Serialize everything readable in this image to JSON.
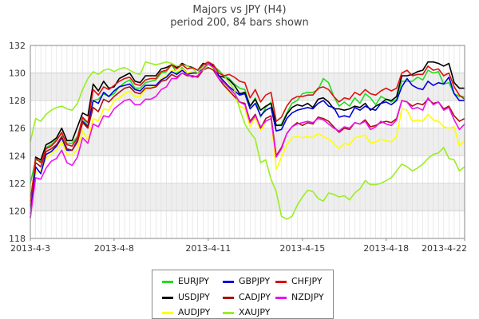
{
  "chart_data": {
    "type": "line",
    "title": "Majors vs JPY (H4)",
    "subtitle": "period 200, 84 bars shown",
    "ylim": [
      118,
      132
    ],
    "yticks": [
      118,
      120,
      122,
      124,
      126,
      128,
      130,
      132
    ],
    "xlim": [
      0,
      83
    ],
    "xticks": [
      {
        "label": "2013-4-3",
        "index": 0
      },
      {
        "label": "2013-4-8",
        "index": 16
      },
      {
        "label": "2013-4-11",
        "index": 34
      },
      {
        "label": "2013-4-15",
        "index": 52
      },
      {
        "label": "2013-4-18",
        "index": 68
      },
      {
        "label": "2013-4-22",
        "index": 83
      }
    ],
    "grid": true,
    "legend_position": "bottom",
    "series": [
      {
        "name": "EURJPY",
        "color": "#22dd22",
        "values": [
          122.0,
          123.7,
          123.6,
          124.6,
          124.8,
          125.2,
          125.6,
          124.9,
          124.9,
          125.4,
          126.7,
          126.2,
          128.0,
          128.1,
          128.5,
          128.3,
          128.5,
          129.0,
          129.3,
          129.5,
          128.9,
          128.9,
          129.3,
          129.4,
          129.5,
          130.0,
          130.1,
          130.6,
          130.0,
          130.4,
          130.0,
          130.1,
          130.0,
          130.5,
          130.7,
          130.5,
          130.2,
          129.8,
          129.6,
          129.2,
          128.9,
          128.8,
          127.6,
          128.2,
          126.8,
          127.5,
          127.9,
          126.2,
          126.3,
          127.1,
          127.8,
          128.0,
          128.5,
          128.6,
          128.6,
          128.8,
          129.6,
          129.3,
          128.3,
          127.6,
          127.9,
          127.6,
          128.2,
          127.8,
          128.5,
          128.2,
          127.7,
          128.3,
          128.1,
          127.9,
          128.1,
          129.4,
          129.4,
          129.4,
          129.7,
          129.5,
          130.2,
          130.0,
          130.1,
          129.2,
          129.3,
          128.5,
          128.3,
          128.3
        ]
      },
      {
        "name": "USDJPY",
        "color": "#000000",
        "values": [
          119.5,
          123.9,
          123.7,
          124.8,
          125.0,
          125.3,
          126.0,
          125.1,
          125.1,
          126.1,
          127.1,
          126.9,
          129.2,
          128.7,
          129.4,
          128.9,
          129.0,
          129.6,
          129.8,
          130.0,
          129.4,
          129.3,
          129.8,
          129.8,
          129.8,
          130.3,
          130.4,
          130.6,
          130.4,
          130.7,
          130.5,
          130.4,
          130.2,
          130.7,
          130.6,
          130.5,
          129.8,
          129.7,
          129.5,
          129.1,
          128.5,
          128.6,
          127.6,
          128.1,
          127.3,
          127.6,
          127.8,
          126.2,
          126.2,
          127.0,
          127.5,
          127.7,
          127.6,
          127.8,
          127.5,
          128.1,
          128.2,
          127.9,
          127.4,
          127.4,
          127.3,
          127.4,
          127.6,
          127.5,
          127.8,
          127.3,
          127.6,
          127.8,
          128.1,
          128.0,
          128.3,
          129.8,
          129.8,
          129.9,
          130.1,
          130.2,
          130.8,
          130.8,
          130.7,
          130.5,
          130.7,
          129.3,
          128.9,
          128.9
        ]
      },
      {
        "name": "AUDJPY",
        "color": "#ffff00",
        "values": [
          121.5,
          122.8,
          122.9,
          123.8,
          124.2,
          124.4,
          125.0,
          124.1,
          124.0,
          124.5,
          125.8,
          125.1,
          126.7,
          126.5,
          127.4,
          127.3,
          128.0,
          128.2,
          128.5,
          128.7,
          128.3,
          128.3,
          128.8,
          128.9,
          129.1,
          129.6,
          129.8,
          130.2,
          130.1,
          130.3,
          130.0,
          130.1,
          130.0,
          130.4,
          130.7,
          130.3,
          129.7,
          129.3,
          128.6,
          128.3,
          127.6,
          127.4,
          126.1,
          126.8,
          125.8,
          126.5,
          126.7,
          123.0,
          123.9,
          124.8,
          125.3,
          125.4,
          125.3,
          125.4,
          125.3,
          125.6,
          125.4,
          125.2,
          124.9,
          124.5,
          124.9,
          124.8,
          125.3,
          125.4,
          125.5,
          124.9,
          125.0,
          125.2,
          125.1,
          125.0,
          125.4,
          127.4,
          127.3,
          126.5,
          126.6,
          126.5,
          127.0,
          126.6,
          126.5,
          126.1,
          126.0,
          126.1,
          124.7,
          125.1
        ]
      },
      {
        "name": "GBPJPY",
        "color": "#0000dd",
        "values": [
          119.8,
          123.2,
          122.7,
          124.1,
          124.3,
          124.7,
          125.3,
          124.4,
          124.4,
          125.1,
          126.5,
          126.1,
          128.0,
          127.8,
          128.6,
          128.3,
          128.7,
          129.0,
          129.1,
          129.2,
          128.8,
          128.7,
          129.1,
          129.1,
          129.1,
          129.5,
          129.7,
          130.1,
          129.9,
          130.2,
          129.9,
          130.0,
          130.0,
          130.3,
          130.7,
          130.6,
          129.8,
          129.4,
          129.0,
          128.7,
          128.4,
          128.5,
          127.4,
          127.8,
          126.9,
          127.3,
          127.5,
          125.8,
          125.9,
          126.7,
          127.1,
          127.3,
          127.4,
          127.5,
          127.4,
          127.8,
          128.0,
          127.6,
          127.5,
          126.8,
          126.9,
          126.8,
          127.5,
          127.3,
          127.6,
          127.4,
          127.3,
          127.8,
          127.9,
          127.7,
          128.0,
          129.0,
          129.6,
          129.1,
          128.9,
          128.8,
          129.4,
          129.1,
          129.3,
          129.2,
          129.7,
          128.5,
          128.0,
          128.0
        ]
      },
      {
        "name": "CADJPY",
        "color": "#aa1111",
        "values": [
          120.7,
          123.5,
          123.2,
          124.3,
          124.5,
          124.8,
          125.4,
          124.5,
          124.4,
          125.0,
          126.4,
          126.0,
          127.5,
          127.2,
          128.1,
          127.9,
          128.3,
          128.6,
          128.9,
          129.0,
          128.6,
          128.5,
          128.9,
          128.9,
          129.0,
          129.4,
          129.5,
          129.9,
          129.7,
          130.0,
          129.8,
          129.8,
          129.7,
          130.2,
          130.4,
          130.2,
          129.6,
          129.1,
          128.7,
          128.3,
          127.9,
          127.8,
          126.5,
          127.0,
          126.0,
          126.7,
          126.9,
          124.0,
          124.6,
          125.6,
          126.1,
          126.4,
          126.2,
          126.4,
          126.3,
          126.8,
          126.7,
          126.5,
          126.1,
          125.7,
          126.0,
          125.9,
          126.4,
          126.3,
          126.6,
          126.1,
          126.2,
          126.4,
          126.5,
          126.4,
          126.7,
          128.0,
          127.9,
          127.6,
          127.8,
          127.7,
          128.1,
          127.8,
          127.9,
          127.4,
          127.6,
          126.9,
          126.5,
          126.7
        ]
      },
      {
        "name": "XAUJPY",
        "color": "#99ee22",
        "values": [
          125.0,
          126.7,
          126.5,
          127.0,
          127.3,
          127.5,
          127.6,
          127.4,
          127.3,
          127.8,
          128.8,
          129.6,
          130.1,
          129.9,
          130.2,
          130.3,
          130.1,
          130.3,
          130.4,
          130.2,
          130.0,
          129.9,
          130.8,
          130.7,
          130.6,
          130.7,
          130.8,
          130.7,
          130.5,
          130.6,
          130.5,
          130.3,
          130.0,
          130.2,
          130.6,
          130.4,
          130.0,
          129.8,
          129.3,
          128.8,
          127.4,
          126.3,
          125.7,
          125.2,
          123.5,
          123.7,
          122.3,
          121.4,
          119.6,
          119.4,
          119.6,
          120.4,
          121.0,
          121.5,
          121.4,
          120.9,
          120.7,
          121.3,
          121.2,
          121.0,
          121.1,
          120.8,
          121.3,
          121.6,
          122.2,
          121.9,
          121.9,
          122.0,
          122.2,
          122.4,
          122.9,
          123.4,
          123.2,
          122.9,
          123.1,
          123.4,
          123.8,
          124.1,
          124.2,
          124.6,
          123.8,
          123.7,
          122.9,
          123.2
        ]
      },
      {
        "name": "CHFJPY",
        "color": "#dd1111",
        "values": [
          120.4,
          123.8,
          123.5,
          124.5,
          124.7,
          125.1,
          125.7,
          124.8,
          124.7,
          125.3,
          126.8,
          126.4,
          128.8,
          128.4,
          129.0,
          128.8,
          129.1,
          129.4,
          129.6,
          129.7,
          129.2,
          129.1,
          129.5,
          129.6,
          129.6,
          130.1,
          130.2,
          130.6,
          130.3,
          130.6,
          130.3,
          130.4,
          130.2,
          130.6,
          130.8,
          130.6,
          130.0,
          129.8,
          129.9,
          129.7,
          129.4,
          129.3,
          128.2,
          128.8,
          127.9,
          128.4,
          128.6,
          126.5,
          126.8,
          127.6,
          128.1,
          128.3,
          128.3,
          128.4,
          128.4,
          128.9,
          129.0,
          128.8,
          128.3,
          127.9,
          128.2,
          128.1,
          128.6,
          128.4,
          128.8,
          128.5,
          128.4,
          128.7,
          128.9,
          128.7,
          128.9,
          130.0,
          130.2,
          129.8,
          129.9,
          129.9,
          130.5,
          130.2,
          130.3,
          129.8,
          130.0,
          129.0,
          128.4,
          128.1
        ]
      },
      {
        "name": "NZDJPY",
        "color": "#ee11ee",
        "values": [
          119.5,
          122.4,
          122.3,
          123.1,
          123.6,
          123.8,
          124.4,
          123.5,
          123.3,
          123.9,
          125.3,
          124.9,
          126.3,
          126.1,
          126.9,
          126.8,
          127.4,
          127.7,
          128.0,
          128.1,
          127.7,
          127.7,
          128.1,
          128.1,
          128.3,
          128.8,
          129.0,
          129.6,
          129.6,
          130.0,
          129.9,
          129.7,
          129.8,
          130.3,
          130.7,
          130.4,
          129.6,
          129.3,
          128.9,
          128.5,
          127.9,
          127.7,
          126.4,
          126.9,
          126.1,
          126.5,
          126.7,
          123.9,
          124.5,
          125.6,
          126.1,
          126.3,
          126.4,
          126.5,
          126.4,
          126.7,
          126.6,
          126.3,
          126.0,
          125.8,
          126.1,
          126.0,
          126.4,
          126.3,
          126.5,
          125.9,
          126.1,
          126.5,
          126.3,
          126.2,
          126.6,
          128.0,
          127.9,
          127.4,
          127.5,
          127.3,
          128.2,
          127.7,
          127.9,
          127.3,
          127.5,
          126.6,
          125.9,
          126.3
        ]
      }
    ]
  },
  "legend": {
    "items": [
      {
        "label": "EURJPY",
        "color": "#22dd22"
      },
      {
        "label": "GBPJPY",
        "color": "#0000dd"
      },
      {
        "label": "CHFJPY",
        "color": "#dd1111"
      },
      {
        "label": "USDJPY",
        "color": "#000000"
      },
      {
        "label": "CADJPY",
        "color": "#aa1111"
      },
      {
        "label": "NZDJPY",
        "color": "#ee11ee"
      },
      {
        "label": "AUDJPY",
        "color": "#ffff00"
      },
      {
        "label": "XAUJPY",
        "color": "#99ee22"
      }
    ]
  }
}
